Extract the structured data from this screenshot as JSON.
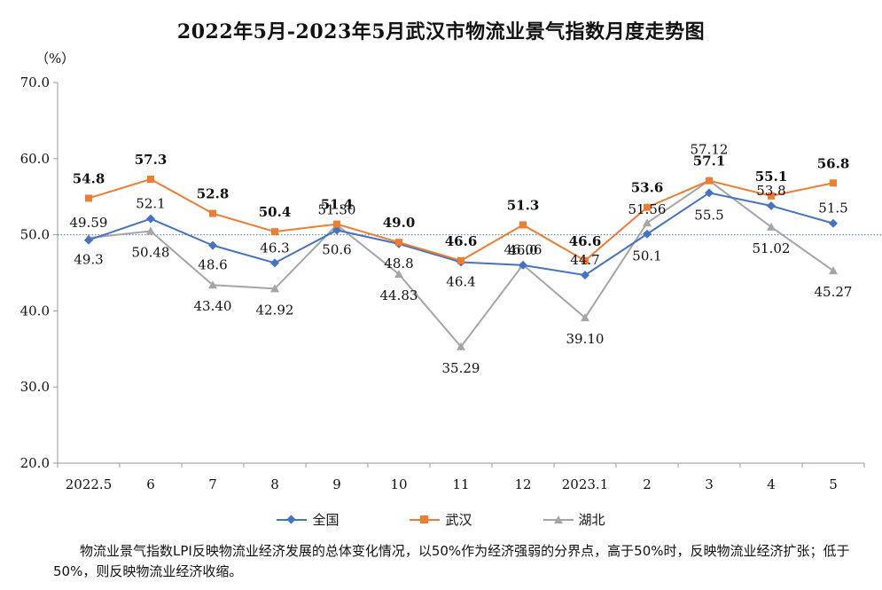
{
  "title": "2022年5月-2023年5月武汉市物流业景气指数月度走势图",
  "unit_label": "（%）",
  "note": "物流业景气指数LPI反映物流业经济发展的总体变化情况，以50%作为经济强弱的分界点，高于50%时，反映物流业经济扩张；低于50%，则反映物流业经济收缩。",
  "legend": {
    "national": "全国",
    "wuhan": "武汉",
    "hubei": "湖北"
  },
  "chart_data": {
    "type": "line",
    "title": "2022年5月-2023年5月武汉市物流业景气指数月度走势图",
    "ylabel": "（%）",
    "ylim": [
      20,
      70
    ],
    "yticks": [
      "20.0",
      "30.0",
      "40.0",
      "50.0",
      "60.0",
      "70.0"
    ],
    "reference_line": 50,
    "categories": [
      "2022.5",
      "6",
      "7",
      "8",
      "9",
      "10",
      "11",
      "12",
      "2023.1",
      "2",
      "3",
      "4",
      "5"
    ],
    "series": [
      {
        "name": "全国",
        "color": "#4472C4",
        "marker": "diamond",
        "values": [
          49.3,
          52.1,
          48.6,
          46.3,
          50.6,
          48.8,
          46.4,
          46.0,
          44.7,
          50.1,
          55.5,
          53.8,
          51.5
        ],
        "labels": [
          "49.3",
          "52.1",
          "48.6",
          "46.3",
          "50.6",
          "48.8",
          "46.4",
          "46.0",
          "44.7",
          "50.1",
          "55.5",
          "53.8",
          "51.5"
        ]
      },
      {
        "name": "武汉",
        "color": "#ED7D31",
        "marker": "square",
        "values": [
          54.8,
          57.3,
          52.8,
          50.4,
          51.4,
          49.0,
          46.6,
          51.3,
          46.6,
          53.6,
          57.1,
          55.1,
          56.8
        ],
        "labels": [
          "54.8",
          "57.3",
          "52.8",
          "50.4",
          "51.4",
          "49.0",
          "46.6",
          "51.3",
          "46.6",
          "53.6",
          "57.1",
          "55.1",
          "56.8"
        ]
      },
      {
        "name": "湖北",
        "color": "#A5A5A5",
        "marker": "triangle",
        "values": [
          49.59,
          50.48,
          43.4,
          42.92,
          51.3,
          44.83,
          35.29,
          46.06,
          39.1,
          51.56,
          57.12,
          51.02,
          45.27
        ],
        "labels": [
          "49.59",
          "50.48",
          "43.40",
          "42.92",
          "51.30",
          "44.83",
          "35.29",
          "46.06",
          "39.10",
          "51.56",
          "57.12",
          "51.02",
          "45.27"
        ]
      }
    ],
    "grid": false,
    "legend_position": "bottom"
  }
}
